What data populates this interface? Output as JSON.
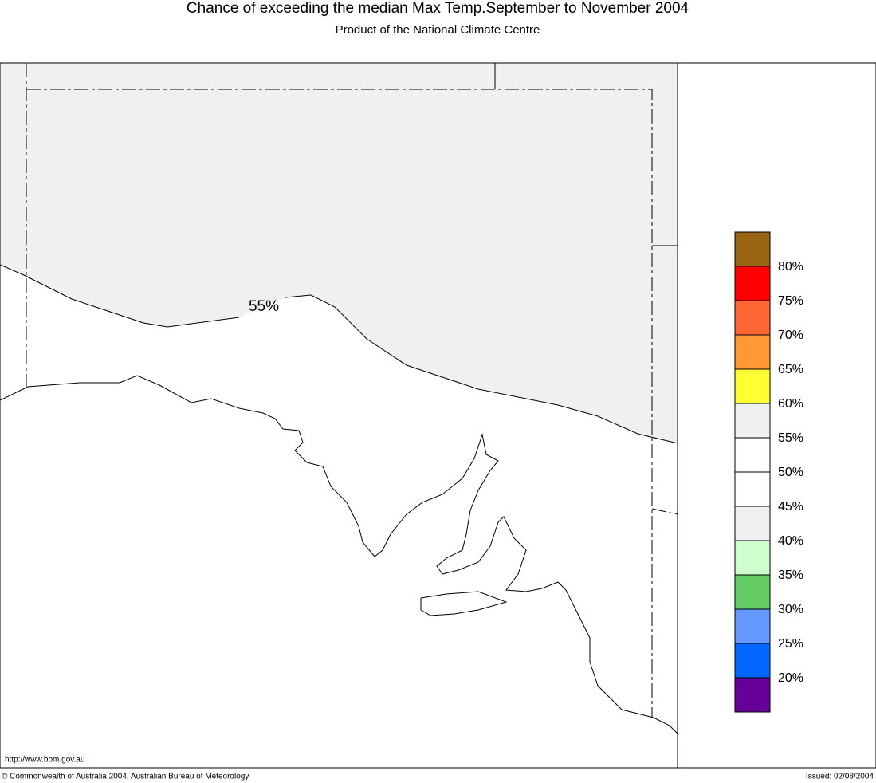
{
  "header": {
    "title": "Chance of exceeding the median Max Temp.September to November 2004",
    "subtitle": "Product of the National Climate Centre"
  },
  "map": {
    "contour_label": "55%",
    "above_color": "#f0f0f0",
    "below_color": "#ffffff"
  },
  "legend": {
    "colors": [
      "#996515",
      "#ff0000",
      "#ff6633",
      "#ff9933",
      "#ffff33",
      "#f0f0f0",
      "#ffffff",
      "#ffffff",
      "#f0f0f0",
      "#ccffcc",
      "#66cc66",
      "#6699ff",
      "#0066ff",
      "#660099"
    ],
    "labels": [
      "80%",
      "75%",
      "70%",
      "65%",
      "60%",
      "55%",
      "50%",
      "45%",
      "40%",
      "35%",
      "30%",
      "25%",
      "20%"
    ]
  },
  "footer": {
    "url": "http://www.bom.gov.au",
    "copyright": "© Commonwealth of Australia 2004, Australian Bureau of Meteorology",
    "issued": "Issued: 02/08/2004"
  }
}
